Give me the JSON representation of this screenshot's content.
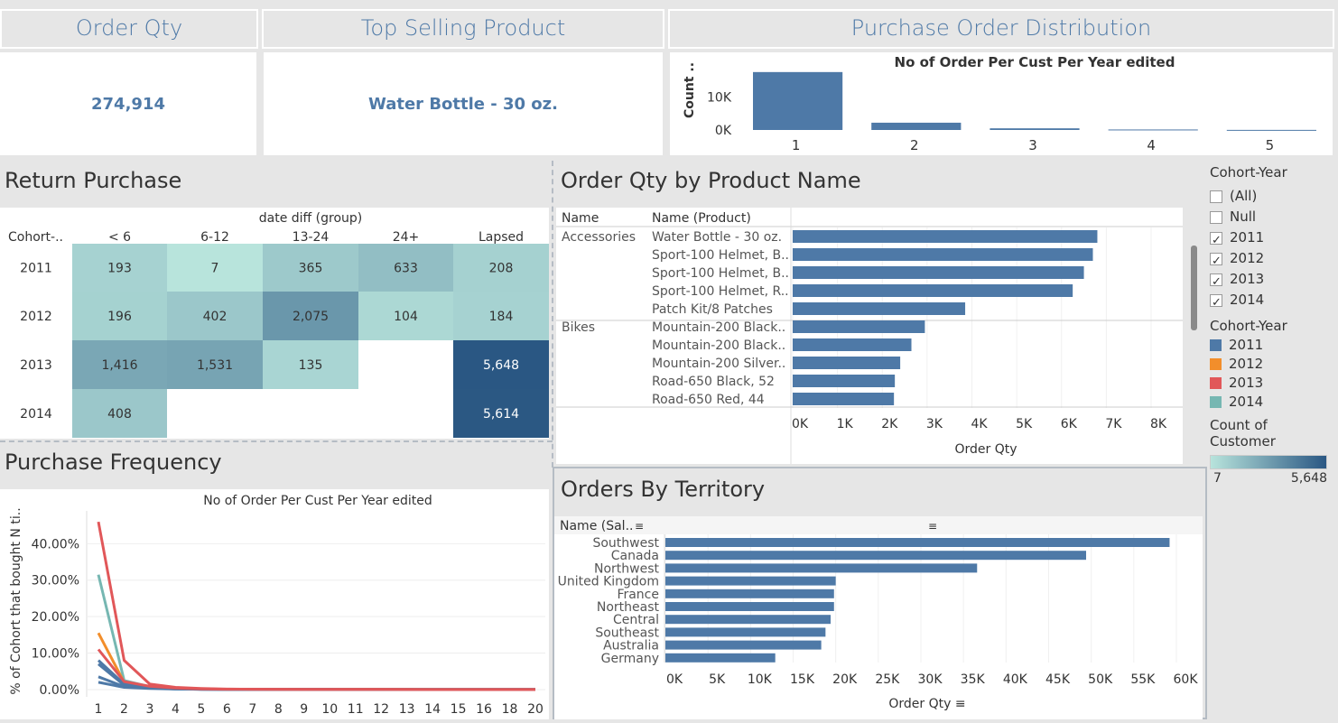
{
  "kpis": {
    "order_qty": {
      "title": "Order Qty",
      "value": "274,914"
    },
    "top_product": {
      "title": "Top Selling Product",
      "value": "Water Bottle - 30 oz."
    },
    "distribution": {
      "title": "Purchase Order Distribution"
    }
  },
  "sections": {
    "return_purchase": "Return Purchase",
    "order_qty_by_product": "Order Qty by Product Name",
    "purchase_frequency": "Purchase Frequency",
    "orders_by_territory": "Orders By Territory"
  },
  "filters": {
    "cohort_title": "Cohort-Year",
    "items": [
      {
        "label": "(All)",
        "checked": false
      },
      {
        "label": "Null",
        "checked": false
      },
      {
        "label": "2011",
        "checked": true
      },
      {
        "label": "2012",
        "checked": true
      },
      {
        "label": "2013",
        "checked": true
      },
      {
        "label": "2014",
        "checked": true
      }
    ],
    "color_legend_title": "Cohort-Year",
    "color_legend": [
      {
        "label": "2011",
        "color": "#4e79a7"
      },
      {
        "label": "2012",
        "color": "#f28e2b"
      },
      {
        "label": "2013",
        "color": "#e15759"
      },
      {
        "label": "2014",
        "color": "#76b7b2"
      }
    ],
    "count_title": "Count of Customer",
    "count_min": "7",
    "count_max": "5,648"
  },
  "chart_data": [
    {
      "id": "distribution",
      "type": "bar",
      "title": "No of Order Per Cust Per Year edited",
      "ylabel": "Count ..",
      "categories": [
        "1",
        "2",
        "3",
        "4",
        "5"
      ],
      "values": [
        17500,
        2200,
        500,
        150,
        30
      ],
      "yticks": [
        "0K",
        "10K"
      ],
      "yticks_values": [
        0,
        10000
      ],
      "ylim": [
        0,
        18000
      ],
      "color": "#4e79a7"
    },
    {
      "id": "return_purchase",
      "type": "heatmap",
      "column_group_label": "date diff (group)",
      "row_header": "Cohort-..",
      "columns": [
        "< 6",
        "6-12",
        "13-24",
        "24+",
        "Lapsed"
      ],
      "rows": [
        "2011",
        "2012",
        "2013",
        "2014"
      ],
      "values": [
        [
          193,
          7,
          365,
          633,
          208
        ],
        [
          196,
          402,
          2075,
          104,
          184
        ],
        [
          1416,
          1531,
          135,
          null,
          5648
        ],
        [
          408,
          null,
          null,
          null,
          5614
        ]
      ],
      "labels": [
        [
          "193",
          "7",
          "365",
          "633",
          "208"
        ],
        [
          "196",
          "402",
          "2,075",
          "104",
          "184"
        ],
        [
          "1,416",
          "1,531",
          "135",
          "",
          "5,648"
        ],
        [
          "408",
          "",
          "",
          "",
          "5,614"
        ]
      ],
      "color_range": [
        "#b8e4dc",
        "#2a5783"
      ],
      "range": [
        7,
        5648
      ]
    },
    {
      "id": "order_qty_by_product",
      "type": "bar",
      "orientation": "horizontal",
      "col_headers": [
        "Name",
        "Name (Product)"
      ],
      "groups": [
        {
          "name": "Accessories",
          "items": [
            {
              "label": "Water Bottle - 30 oz.",
              "value": 6800
            },
            {
              "label": "Sport-100 Helmet, B..",
              "value": 6700
            },
            {
              "label": "Sport-100 Helmet, B..",
              "value": 6500
            },
            {
              "label": "Sport-100 Helmet, R..",
              "value": 6250
            },
            {
              "label": "Patch Kit/8 Patches",
              "value": 3850
            }
          ]
        },
        {
          "name": "Bikes",
          "items": [
            {
              "label": "Mountain-200 Black..",
              "value": 2950
            },
            {
              "label": "Mountain-200 Black..",
              "value": 2650
            },
            {
              "label": "Mountain-200 Silver..",
              "value": 2400
            },
            {
              "label": "Road-650 Black, 52",
              "value": 2280
            },
            {
              "label": "Road-650 Red, 44",
              "value": 2260
            }
          ]
        }
      ],
      "xticks": [
        "0K",
        "1K",
        "2K",
        "3K",
        "4K",
        "5K",
        "6K",
        "7K",
        "8K"
      ],
      "xlim": [
        0,
        8000
      ],
      "xlabel": "Order Qty",
      "color": "#4e79a7"
    },
    {
      "id": "purchase_frequency",
      "type": "line",
      "title": "No of Order Per Cust Per Year edited",
      "ylabel": "% of Cohort that bought N ti..",
      "x": [
        1,
        2,
        3,
        4,
        5,
        6,
        7,
        8,
        9,
        10,
        11,
        12,
        13,
        14,
        15,
        16,
        18,
        20
      ],
      "xticks": [
        "1",
        "2",
        "3",
        "4",
        "5",
        "6",
        "7",
        "8",
        "9",
        "10",
        "11",
        "12",
        "13",
        "14",
        "15",
        "16",
        "18",
        "20"
      ],
      "yticks": [
        "0.00%",
        "10.00%",
        "20.00%",
        "30.00%",
        "40.00%"
      ],
      "yticks_values": [
        0,
        10,
        20,
        30,
        40
      ],
      "ylim": [
        -1,
        48
      ],
      "series": [
        {
          "color": "#76b7b2",
          "values": [
            31.5,
            2.5,
            0.8,
            0.4,
            0.2,
            0.1,
            0.1,
            0.05,
            0.05,
            0.05,
            0.03,
            0.03,
            0.03,
            0.02,
            0.02,
            0.02,
            0.01,
            0.01
          ]
        },
        {
          "color": "#f28e2b",
          "values": [
            15.5,
            2.0,
            0.7,
            0.3,
            0.15,
            0.1,
            0.05,
            0.05,
            0.05,
            0.03,
            0.03,
            0.03,
            0.02,
            0.02,
            0.02,
            0.01,
            0.01,
            0.01
          ]
        },
        {
          "color": "#4e79a7",
          "values": [
            8.0,
            1.5,
            0.6,
            0.3,
            0.1,
            0.05,
            0.05,
            0.03,
            0.03,
            0.03,
            0.02,
            0.02,
            0.02,
            0.01,
            0.01,
            0.01,
            0.01,
            0.01
          ]
        },
        {
          "color": "#4e79a7",
          "values": [
            7.0,
            1.2,
            0.5,
            0.2,
            0.1,
            0.05,
            0.05,
            0.03,
            0.03,
            0.03,
            0.02,
            0.02,
            0.02,
            0.01,
            0.01,
            0.01,
            0.01,
            0.01
          ]
        },
        {
          "color": "#4e79a7",
          "values": [
            3.5,
            0.8,
            0.4,
            0.2,
            0.1,
            0.05,
            0.05,
            0.03,
            0.03,
            0.03,
            0.02,
            0.02,
            0.02,
            0.01,
            0.01,
            0.01,
            0.01,
            0.01
          ]
        },
        {
          "color": "#4e79a7",
          "values": [
            2.0,
            0.6,
            0.3,
            0.15,
            0.08,
            0.05,
            0.04,
            0.03,
            0.03,
            0.02,
            0.02,
            0.02,
            0.01,
            0.01,
            0.01,
            0.01,
            0.01,
            0.01
          ]
        },
        {
          "color": "#e15759",
          "values": [
            11.0,
            2.2,
            0.9,
            0.4,
            0.2,
            0.1,
            0.08,
            0.05,
            0.05,
            0.03,
            0.03,
            0.03,
            0.02,
            0.02,
            0.02,
            0.01,
            0.01,
            0.01
          ]
        },
        {
          "color": "#e15759",
          "values": [
            46.0,
            8.0,
            1.5,
            0.6,
            0.3,
            0.15,
            0.1,
            0.08,
            0.05,
            0.05,
            0.04,
            0.03,
            0.03,
            0.02,
            0.02,
            0.02,
            0.01,
            0.01
          ]
        }
      ]
    },
    {
      "id": "orders_by_territory",
      "type": "bar",
      "orientation": "horizontal",
      "row_header": "Name (Sal..",
      "categories": [
        "Southwest",
        "Canada",
        "Northwest",
        "United Kingdom",
        "France",
        "Northeast",
        "Central",
        "Southeast",
        "Australia",
        "Germany"
      ],
      "values": [
        59200,
        49400,
        36600,
        20000,
        19800,
        19800,
        19400,
        18800,
        18300,
        12900
      ],
      "xticks": [
        "0K",
        "5K",
        "10K",
        "15K",
        "20K",
        "25K",
        "30K",
        "35K",
        "40K",
        "45K",
        "50K",
        "55K",
        "60K"
      ],
      "xlim": [
        0,
        62000
      ],
      "xlabel": "Order Qty",
      "color": "#4e79a7"
    }
  ]
}
